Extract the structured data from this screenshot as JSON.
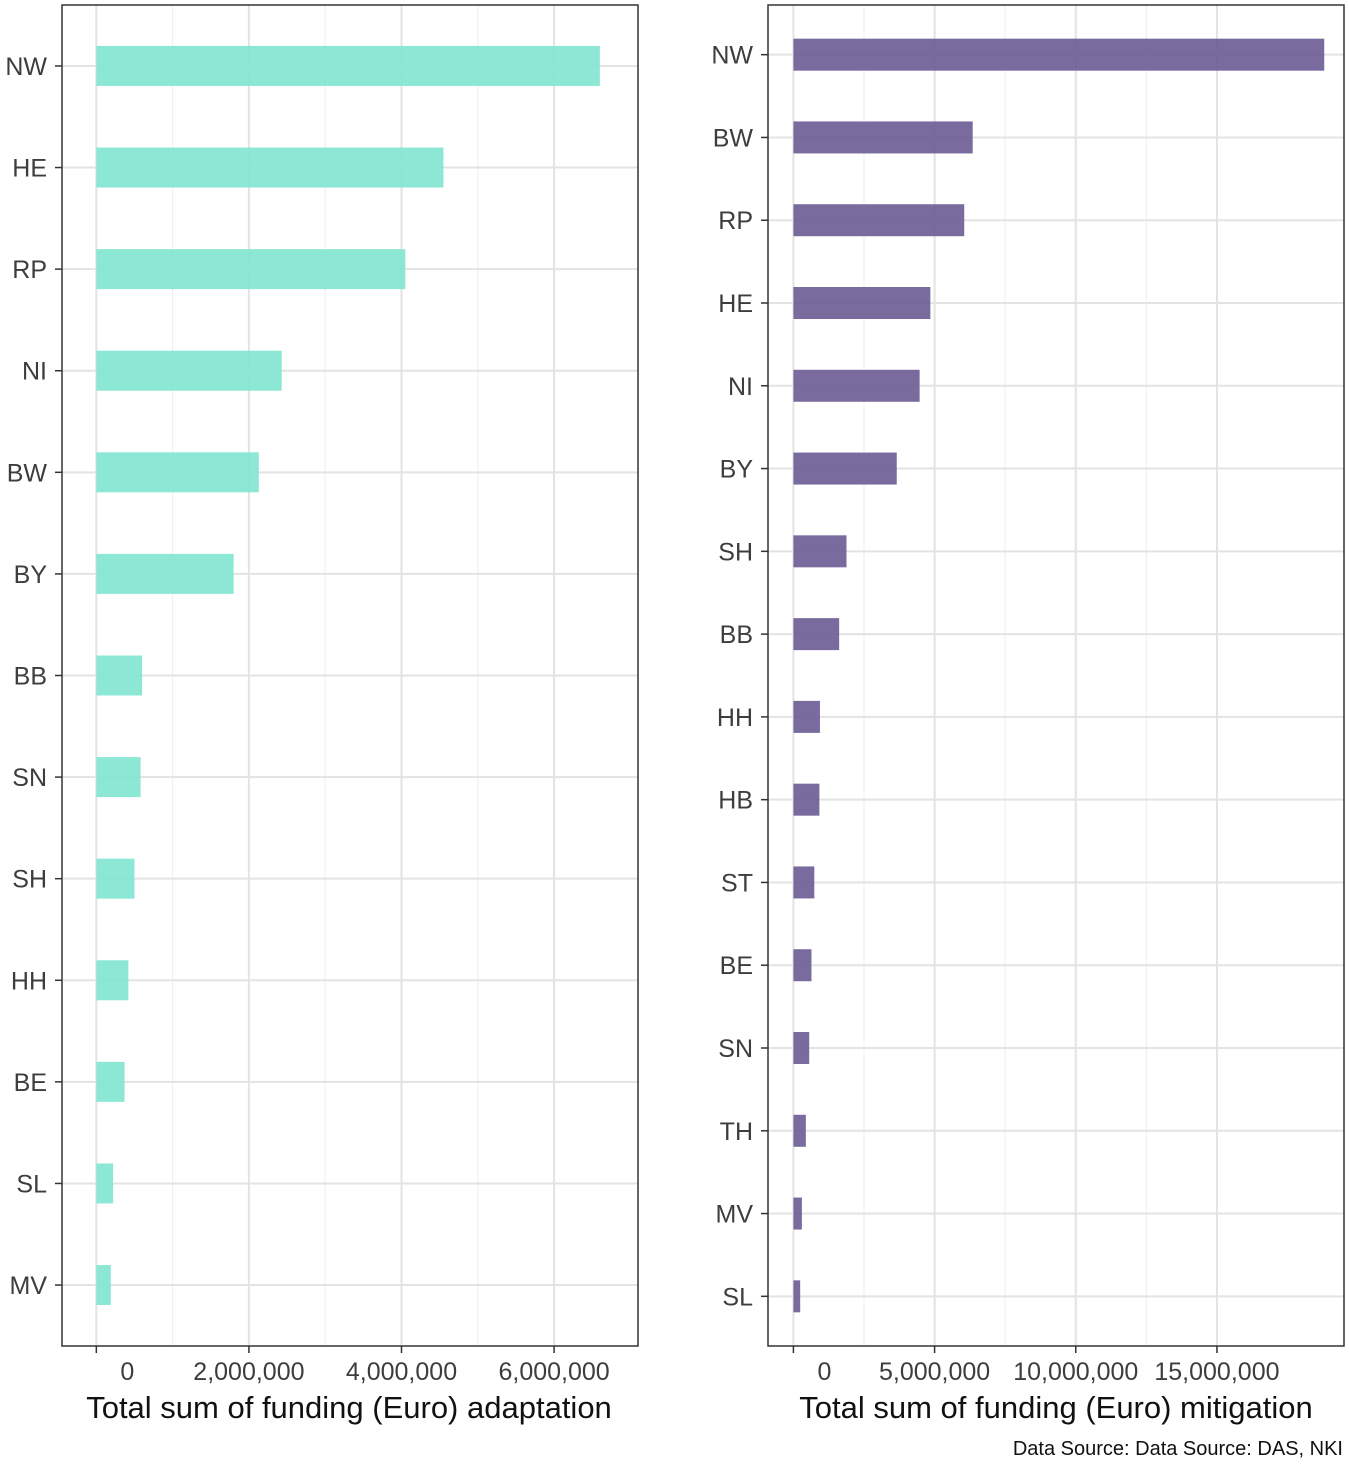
{
  "chart_data": [
    {
      "type": "bar",
      "orientation": "horizontal",
      "xlabel": "Total sum of funding (Euro) adaptation",
      "xlim": [
        -450000,
        7100000
      ],
      "xticks": [
        0,
        2000000,
        4000000,
        6000000
      ],
      "xtick_labels": [
        "0",
        "2,000,000",
        "4,000,000",
        "6,000,000"
      ],
      "categories": [
        "NW",
        "HE",
        "RP",
        "NI",
        "BW",
        "BY",
        "BB",
        "SN",
        "SH",
        "HH",
        "BE",
        "SL",
        "MV"
      ],
      "values": [
        6600000,
        4550000,
        4050000,
        2430000,
        2130000,
        1800000,
        600000,
        580000,
        500000,
        420000,
        370000,
        220000,
        190000
      ],
      "color": "#7fe5d0",
      "grid": true
    },
    {
      "type": "bar",
      "orientation": "horizontal",
      "xlabel": "Total sum of funding (Euro) mitigation",
      "xlim": [
        -900000,
        19500000
      ],
      "xticks": [
        0,
        5000000,
        10000000,
        15000000
      ],
      "xtick_labels": [
        "0",
        "5,000,000",
        "10,000,000",
        "15,000,000"
      ],
      "categories": [
        "NW",
        "BW",
        "RP",
        "HE",
        "NI",
        "BY",
        "SH",
        "BB",
        "HH",
        "HB",
        "ST",
        "BE",
        "SN",
        "TH",
        "MV",
        "SL"
      ],
      "values": [
        18800000,
        6350000,
        6050000,
        4850000,
        4470000,
        3660000,
        1880000,
        1620000,
        940000,
        920000,
        740000,
        640000,
        560000,
        440000,
        300000,
        240000
      ],
      "color": "#6b5b95",
      "grid": true
    }
  ],
  "source": "Data Source: Data Source: DAS, NKI"
}
